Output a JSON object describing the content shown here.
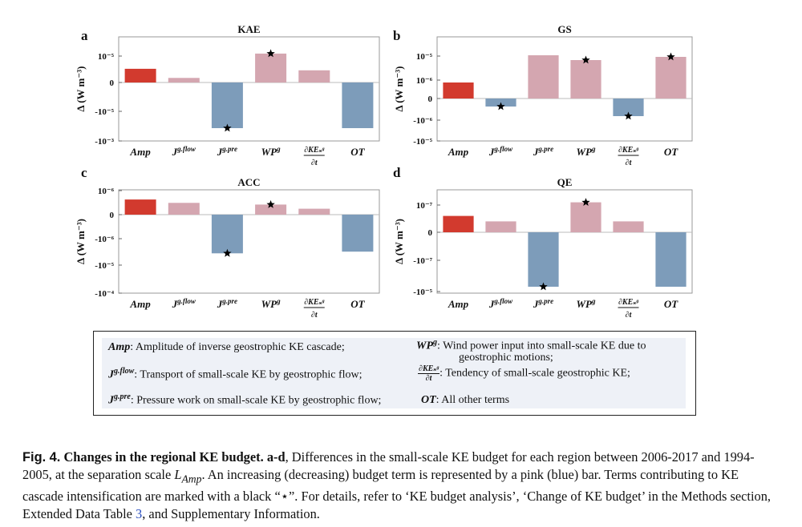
{
  "colors": {
    "increase_strong": "#d23a2e",
    "increase": "#d4a6b0",
    "decrease": "#7d9cba",
    "star": "#000000"
  },
  "ylabel": "Δ (W m⁻³)",
  "category_keys": [
    "Amp",
    "Jflow",
    "Jpre",
    "WP",
    "dKE",
    "OT"
  ],
  "category_labels": {
    "Amp": "Amp",
    "Jflow_base": "J",
    "Jflow_sup": "g.flow",
    "Jpre_base": "J",
    "Jpre_sup": "g.pre",
    "WP_base": "WP",
    "WP_sup": "g",
    "dKE_num": "∂KEₛᵍ",
    "dKE_den": "∂t",
    "OT": "OT"
  },
  "chart_data": [
    {
      "panel": "a",
      "title": "KAE",
      "type": "bar",
      "scale": "symlog",
      "yticks": [
        "10⁻⁵",
        "0",
        "-10⁻⁵",
        "-10⁻³"
      ],
      "values": [
        0.9,
        0.3,
        -3.0,
        1.9,
        0.8,
        -3.0
      ],
      "colors": [
        "increase_strong",
        "increase",
        "decrease",
        "increase",
        "increase",
        "decrease"
      ],
      "stars": [
        false,
        false,
        true,
        true,
        false,
        false
      ]
    },
    {
      "panel": "b",
      "title": "GS",
      "type": "bar",
      "scale": "symlog",
      "yticks": [
        "10⁻⁵",
        "10⁻⁶",
        "0",
        "-10⁻⁶",
        "-10⁻⁵"
      ],
      "values": [
        1.0,
        -0.5,
        2.7,
        2.4,
        -1.1,
        2.6
      ],
      "colors": [
        "increase_strong",
        "decrease",
        "increase",
        "increase",
        "decrease",
        "increase"
      ],
      "stars": [
        false,
        true,
        false,
        true,
        true,
        true
      ]
    },
    {
      "panel": "c",
      "title": "ACC",
      "type": "bar",
      "scale": "symlog",
      "yticks": [
        "10⁻⁶",
        "0",
        "-10⁻⁶",
        "-10⁻⁵",
        "-10⁻⁴"
      ],
      "values": [
        0.9,
        0.7,
        -2.3,
        0.6,
        0.35,
        -2.2
      ],
      "colors": [
        "increase_strong",
        "increase",
        "decrease",
        "increase",
        "increase",
        "decrease"
      ],
      "stars": [
        false,
        false,
        true,
        true,
        false,
        false
      ]
    },
    {
      "panel": "d",
      "title": "QE",
      "type": "bar",
      "scale": "symlog",
      "yticks": [
        "10⁻⁷",
        "0",
        "-10⁻⁷",
        "-10⁻⁵"
      ],
      "values": [
        0.6,
        0.4,
        -2.0,
        1.1,
        0.4,
        -2.0
      ],
      "colors": [
        "increase_strong",
        "increase",
        "decrease",
        "increase",
        "increase",
        "decrease"
      ],
      "stars": [
        false,
        false,
        true,
        true,
        false,
        false
      ]
    }
  ],
  "legend": {
    "amp_sym": "Amp",
    "amp_text": ":   Amplitude of  inverse geostrophic KE cascade;",
    "jflow_sym": "J",
    "jflow_sup": "g.flow",
    "jflow_text": ": Transport of small-scale KE by geostrophic flow;",
    "jpre_sym": "J",
    "jpre_sup": "g.pre",
    "jpre_text": ":   Pressure work on small-scale KE by geostrophic flow;",
    "wp_sym": "WP",
    "wp_sup": "g",
    "wp_text_1": ":    Wind power input into small-scale KE due to",
    "wp_text_2": "geostrophic motions;",
    "dke_num": "∂KEₛᵍ",
    "dke_den": "∂t",
    "dke_text": ":     Tendency of small-scale geostrophic KE;",
    "ot_sym": "OT",
    "ot_text": ":     All other terms"
  },
  "caption": {
    "fig_label": "Fig. 4.",
    "title": "Changes in the regional KE budget.",
    "panels": "a-d",
    "text_1": ", Differences in the small-scale KE budget for each region between 2006-2017 and 1994-2005, at the separation scale ",
    "scale_var": "L",
    "scale_sub": "Amp",
    "text_2": ". An increasing (decreasing) budget term is represented by a pink (blue) bar. Terms contributing to KE cascade intensification are marked with a black “⋆”. For details, refer to ‘KE budget analysis’, ‘Change of KE budget’ in the Methods section, Extended Data Table ",
    "table_ref": "3",
    "text_3": ", and Supplementary Information."
  }
}
